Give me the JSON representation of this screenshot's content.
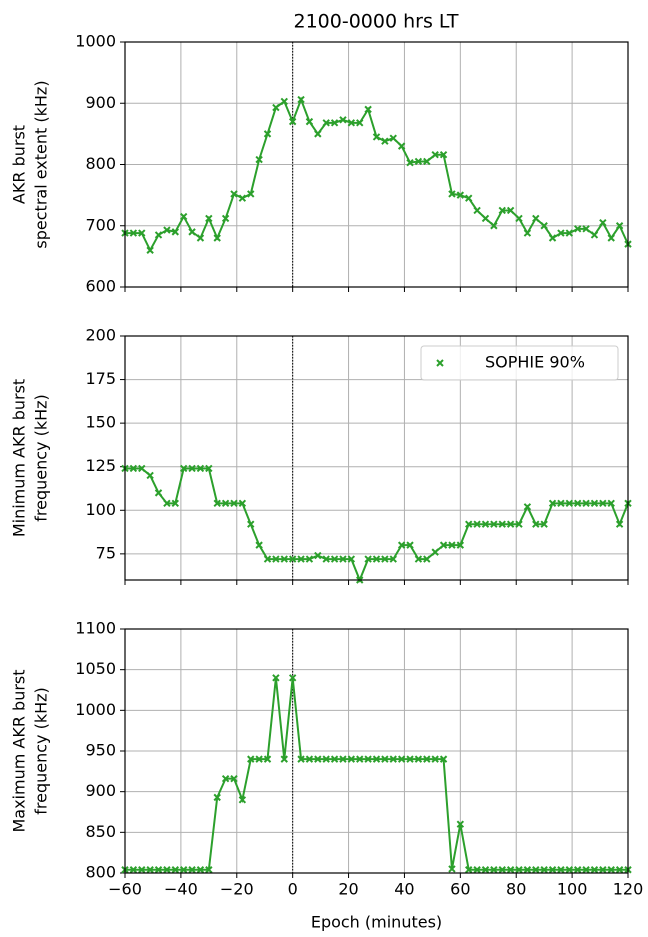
{
  "chart_data": [
    {
      "type": "line",
      "title": "2100-0000 hrs LT",
      "ylabel": [
        "AKR burst",
        "spectral extent (kHz)"
      ],
      "x": [
        -60,
        -57,
        -54,
        -51,
        -48,
        -45,
        -42,
        -39,
        -36,
        -33,
        -30,
        -27,
        -24,
        -21,
        -18,
        -15,
        -12,
        -9,
        -6,
        -3,
        0,
        3,
        6,
        9,
        12,
        15,
        18,
        21,
        24,
        27,
        30,
        33,
        36,
        39,
        42,
        45,
        48,
        51,
        54,
        57,
        60,
        63,
        66,
        69,
        72,
        75,
        78,
        81,
        84,
        87,
        90,
        93,
        96,
        99,
        102,
        105,
        108,
        111,
        114,
        117,
        120
      ],
      "series": [
        {
          "color": "#2ca02c",
          "values": [
            688,
            688,
            688,
            660,
            685,
            693,
            690,
            715,
            690,
            680,
            712,
            680,
            712,
            752,
            745,
            752,
            808,
            850,
            893,
            903,
            870,
            906,
            870,
            850,
            868,
            868,
            873,
            868,
            868,
            890,
            845,
            838,
            843,
            830,
            803,
            805,
            805,
            816,
            816,
            752,
            750,
            745,
            725,
            712,
            700,
            725,
            725,
            712,
            688,
            712,
            700,
            680,
            688,
            688,
            695,
            695,
            685,
            705,
            680,
            700,
            670
          ]
        }
      ],
      "xlim": [
        -60,
        120
      ],
      "xticks": [
        {
          "value": -60,
          "label": "−60"
        },
        {
          "value": -40,
          "label": "−40"
        },
        {
          "value": -20,
          "label": "−20"
        },
        0,
        20,
        40,
        60,
        80,
        100,
        120
      ],
      "ylim": [
        600,
        1000
      ],
      "yticks": [
        600,
        700,
        800,
        900,
        1000
      ],
      "grid": true,
      "vline": 0
    },
    {
      "type": "line",
      "ylabel": [
        "Minimum AKR burst",
        "frequency (kHz)"
      ],
      "x": [
        -60,
        -57,
        -54,
        -51,
        -48,
        -45,
        -42,
        -39,
        -36,
        -33,
        -30,
        -27,
        -24,
        -21,
        -18,
        -15,
        -12,
        -9,
        -6,
        -3,
        0,
        3,
        6,
        9,
        12,
        15,
        18,
        21,
        24,
        27,
        30,
        33,
        36,
        39,
        42,
        45,
        48,
        51,
        54,
        57,
        60,
        63,
        66,
        69,
        72,
        75,
        78,
        81,
        84,
        87,
        90,
        93,
        96,
        99,
        102,
        105,
        108,
        111,
        114,
        117,
        120
      ],
      "series": [
        {
          "name": "SOPHIE 90%",
          "color": "#2ca02c",
          "values": [
            124,
            124,
            124,
            120,
            110,
            104,
            104,
            124,
            124,
            124,
            124,
            104,
            104,
            104,
            104,
            92,
            80,
            72,
            72,
            72,
            72,
            72,
            72,
            74,
            72,
            72,
            72,
            72,
            60,
            72,
            72,
            72,
            72,
            80,
            80,
            72,
            72,
            76,
            80,
            80,
            80,
            92,
            92,
            92,
            92,
            92,
            92,
            92,
            102,
            92,
            92,
            104,
            104,
            104,
            104,
            104,
            104,
            104,
            104,
            92,
            104
          ]
        }
      ],
      "xlim": [
        -60,
        120
      ],
      "xticks": [
        -60,
        -40,
        -20,
        0,
        20,
        40,
        60,
        80,
        100,
        120
      ],
      "ylim": [
        60,
        200
      ],
      "yticks": [
        75,
        100,
        125,
        150,
        175,
        200
      ],
      "grid": true,
      "vline": 0,
      "legend": "upper right"
    },
    {
      "type": "line",
      "ylabel": [
        "Maximum AKR burst",
        "frequency (kHz)"
      ],
      "xlabel": "Epoch (minutes)",
      "x": [
        -60,
        -57,
        -54,
        -51,
        -48,
        -45,
        -42,
        -39,
        -36,
        -33,
        -30,
        -27,
        -24,
        -21,
        -18,
        -15,
        -12,
        -9,
        -6,
        -3,
        0,
        3,
        6,
        9,
        12,
        15,
        18,
        21,
        24,
        27,
        30,
        33,
        36,
        39,
        42,
        45,
        48,
        51,
        54,
        57,
        60,
        63,
        66,
        69,
        72,
        75,
        78,
        81,
        84,
        87,
        90,
        93,
        96,
        99,
        102,
        105,
        108,
        111,
        114,
        117,
        120
      ],
      "series": [
        {
          "color": "#2ca02c",
          "values": [
            804,
            804,
            804,
            804,
            804,
            804,
            804,
            804,
            804,
            804,
            804,
            893,
            916,
            916,
            890,
            940,
            940,
            940,
            1040,
            940,
            1040,
            940,
            940,
            940,
            940,
            940,
            940,
            940,
            940,
            940,
            940,
            940,
            940,
            940,
            940,
            940,
            940,
            940,
            940,
            805,
            860,
            804,
            804,
            804,
            804,
            804,
            804,
            804,
            804,
            804,
            804,
            804,
            804,
            804,
            804,
            804,
            804,
            804,
            804,
            804,
            804
          ]
        }
      ],
      "xlim": [
        -60,
        120
      ],
      "xticks": [
        {
          "value": -60,
          "label": "−60"
        },
        {
          "value": -40,
          "label": "−40"
        },
        {
          "value": -20,
          "label": "−20"
        },
        0,
        20,
        40,
        60,
        80,
        100,
        120
      ],
      "ylim": [
        800,
        1100
      ],
      "yticks": [
        800,
        850,
        900,
        950,
        1000,
        1050,
        1100
      ],
      "grid": true,
      "vline": 0
    }
  ]
}
